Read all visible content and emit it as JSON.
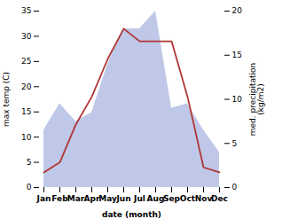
{
  "chart_data": {
    "type": "line",
    "xlabel": "date (month)",
    "ylabel": "max temp (C)",
    "y2label": "med. precipitation\n(kg/m2)",
    "categories": [
      "Jan",
      "Feb",
      "Mar",
      "Apr",
      "May",
      "Jun",
      "Jul",
      "Aug",
      "Sep",
      "Oct",
      "Nov",
      "Dec"
    ],
    "series": [
      {
        "type": "area",
        "axis": "y2",
        "color": "#bfc8e8",
        "values": [
          6.5,
          9.5,
          7.5,
          8.5,
          14,
          18,
          18,
          20,
          9,
          9.5,
          6.5,
          4
        ]
      },
      {
        "type": "line",
        "color": "#b03535",
        "values": [
          3,
          5,
          12.5,
          18,
          25.5,
          31.5,
          29,
          29,
          29,
          18,
          4,
          3
        ]
      }
    ],
    "ylim": [
      0,
      35
    ],
    "yticks": [
      0,
      5,
      10,
      15,
      20,
      25,
      30,
      35
    ],
    "y2lim": [
      0,
      20
    ],
    "y2ticks": [
      0,
      5,
      10,
      15,
      20
    ]
  }
}
